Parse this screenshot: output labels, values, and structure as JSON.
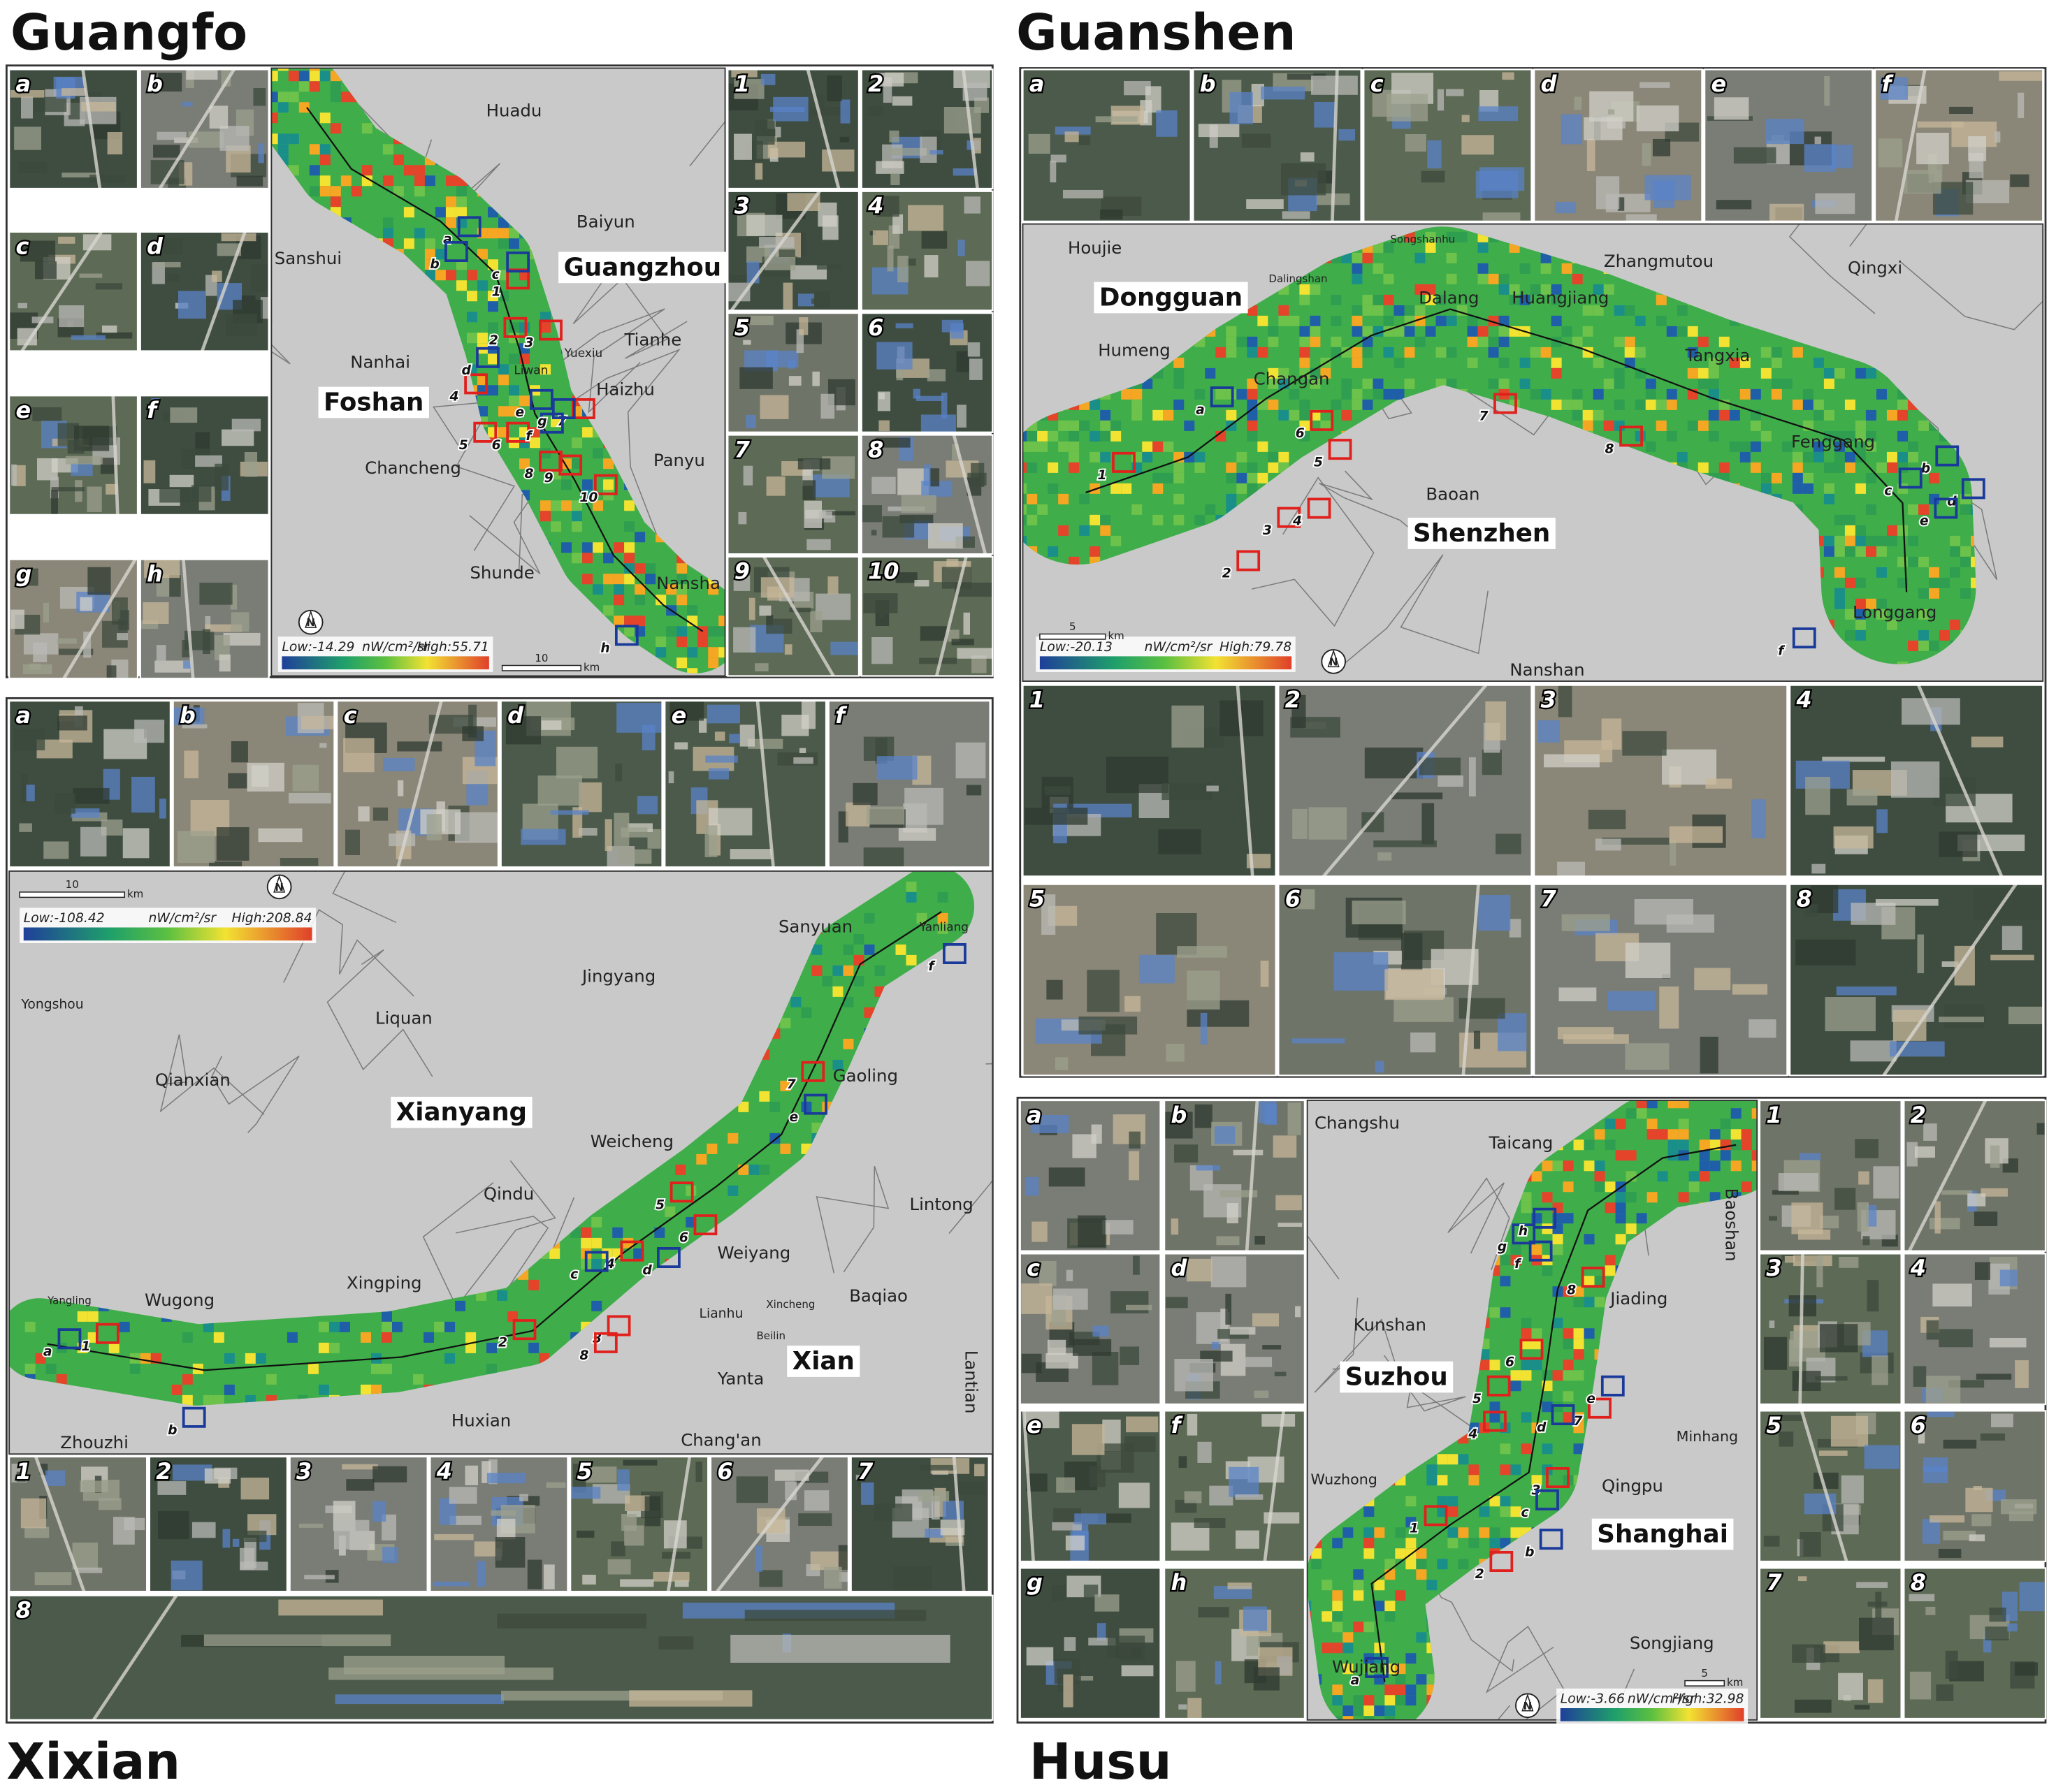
{
  "panels": [
    {
      "title": "Guangfo",
      "places": [
        "Huadu",
        "Baiyun",
        "Sanshui",
        "Tianhe",
        "Nanhai",
        "Yuexiu",
        "Liwan",
        "Haizhu",
        "Panyu",
        "Chancheng",
        "Shunde",
        "Nansha"
      ],
      "cities": [
        "Guangzhou",
        "Foshan"
      ],
      "legend": {
        "low": "Low:-14.29",
        "unit": "nW/cm²/sr",
        "high": "High:55.71"
      },
      "scale": {
        "value": "10",
        "unit": "km"
      },
      "north": "N",
      "letters": [
        "a",
        "b",
        "c",
        "d",
        "e",
        "f",
        "g",
        "h"
      ],
      "numbers": [
        "1",
        "2",
        "3",
        "4",
        "5",
        "6",
        "7",
        "8",
        "9",
        "10"
      ]
    },
    {
      "title": "Guanshen",
      "places": [
        "Houjie",
        "Songshanhu",
        "Dalingshan",
        "Zhangmutou",
        "Qingxi",
        "Humeng",
        "Dalang",
        "Huangjiang",
        "Changan",
        "Tangxia",
        "Fenggang",
        "Baoan",
        "Longgang",
        "Nanshan"
      ],
      "cities": [
        "Dongguan",
        "Shenzhen"
      ],
      "legend": {
        "low": "Low:-20.13",
        "unit": "nW/cm²/sr",
        "high": "High:79.78"
      },
      "scale": {
        "value": "5",
        "unit": "km"
      },
      "north": "N",
      "letters": [
        "a",
        "b",
        "c",
        "d",
        "e",
        "f"
      ],
      "numbers": [
        "1",
        "2",
        "3",
        "4",
        "5",
        "6",
        "7",
        "8"
      ]
    },
    {
      "title": "Xixian",
      "places": [
        "Sanyuan",
        "Jingyang",
        "Yongshou",
        "Liquan",
        "Qianxian",
        "Gaoling",
        "Weicheng",
        "Qindu",
        "Lintong",
        "Xingping",
        "Weiyang",
        "Wugong",
        "Baqiao",
        "Lianhu",
        "Xincheng",
        "Beilin",
        "Yanta",
        "Huxian",
        "Chang'an",
        "Zhouzhi",
        "Lantian",
        "Yangling",
        "Yanliang"
      ],
      "cities": [
        "Xianyang",
        "Xian"
      ],
      "legend": {
        "low": "Low:-108.42",
        "unit": "nW/cm²/sr",
        "high": "High:208.84"
      },
      "scale": {
        "value": "10",
        "unit": "km"
      },
      "north": "N",
      "letters": [
        "a",
        "b",
        "c",
        "d",
        "e",
        "f"
      ],
      "numbers": [
        "1",
        "2",
        "3",
        "4",
        "5",
        "6",
        "7",
        "8"
      ]
    },
    {
      "title": "Husu",
      "places": [
        "Changshu",
        "Taicang",
        "Baoshan",
        "Jiading",
        "Kunshan",
        "Minhang",
        "Wuzhong",
        "Qingpu",
        "Songjiang",
        "Wujiang"
      ],
      "cities": [
        "Suzhou",
        "Shanghai"
      ],
      "legend": {
        "low": "Low:-3.66",
        "unit": "nW/cm²/sr",
        "high": "High:32.98"
      },
      "scale": {
        "value": "5",
        "unit": "km"
      },
      "north": "N",
      "letters": [
        "a",
        "b",
        "c",
        "d",
        "e",
        "f",
        "g",
        "h"
      ],
      "numbers": [
        "1",
        "2",
        "3",
        "4",
        "5",
        "6",
        "7",
        "8"
      ]
    }
  ]
}
